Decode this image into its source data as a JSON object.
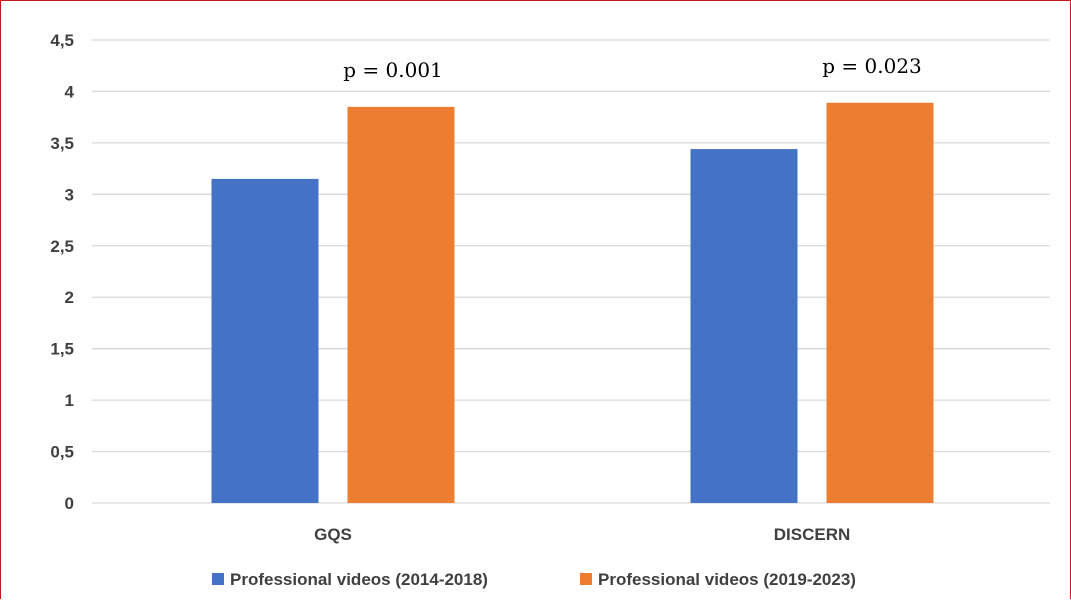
{
  "chart_data": {
    "type": "bar",
    "categories": [
      "GQS",
      "DISCERN"
    ],
    "series": [
      {
        "name": "Professional videos (2014-2018)",
        "values": [
          3.15,
          3.44
        ],
        "color": "#4472c4"
      },
      {
        "name": "Professional videos (2019-2023)",
        "values": [
          3.85,
          3.89
        ],
        "color": "#ed7d31"
      }
    ],
    "ylim": [
      0,
      4.5
    ],
    "yticks": [
      0,
      0.5,
      1,
      1.5,
      2,
      2.5,
      3,
      3.5,
      4,
      4.5
    ],
    "ytick_labels": [
      "0",
      "0,5",
      "1",
      "1,5",
      "2",
      "2,5",
      "3",
      "3,5",
      "4",
      "4,5"
    ],
    "annotations": [
      "p = 0.001",
      "p = 0.023"
    ],
    "grid": true,
    "legend_position": "bottom",
    "title": "",
    "xlabel": "",
    "ylabel": ""
  }
}
